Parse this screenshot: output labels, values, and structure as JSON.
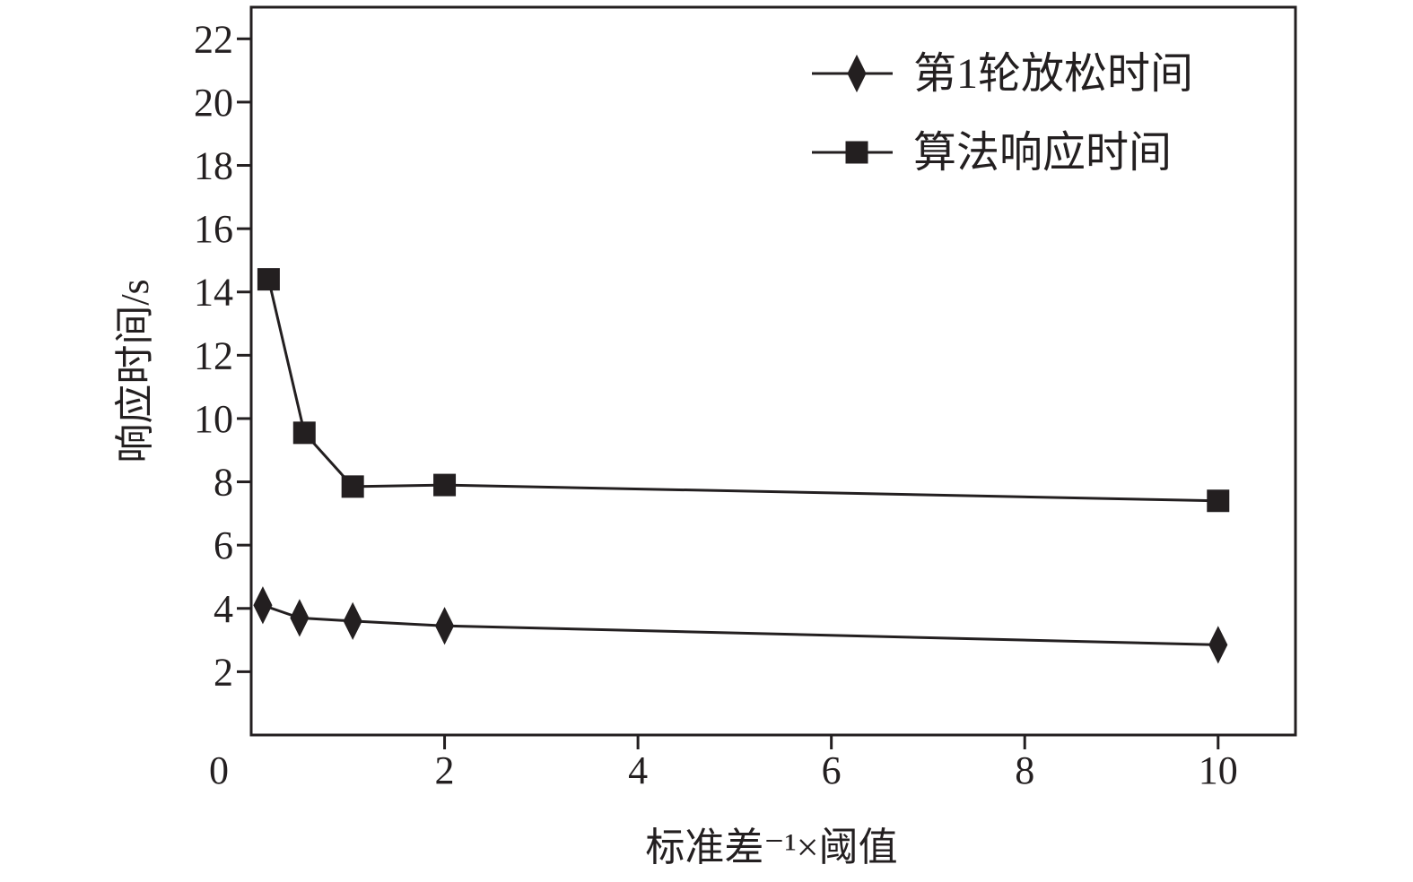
{
  "chart_data": {
    "type": "line",
    "xlabel": "标准差⁻¹×阈值",
    "ylabel": "响应时间/s",
    "xlim": [
      0,
      10.8
    ],
    "ylim": [
      0,
      23
    ],
    "x_ticks": [
      0,
      2,
      4,
      6,
      8,
      10
    ],
    "y_ticks": [
      2,
      4,
      6,
      8,
      10,
      12,
      14,
      16,
      18,
      20,
      22
    ],
    "grid": false,
    "legend_position": "top-right",
    "series": [
      {
        "name": "第1轮放松时间",
        "marker": "diamond",
        "x": [
          0.12,
          0.5,
          1.05,
          2.0,
          10.0
        ],
        "y": [
          4.1,
          3.7,
          3.6,
          3.45,
          2.85
        ]
      },
      {
        "name": "算法响应时间",
        "marker": "square",
        "x": [
          0.18,
          0.55,
          1.05,
          2.0,
          10.0
        ],
        "y": [
          14.4,
          9.55,
          7.85,
          7.9,
          7.4
        ]
      }
    ],
    "colors": {
      "line": "#231f20",
      "axis": "#231f20",
      "background": "#ffffff"
    }
  }
}
